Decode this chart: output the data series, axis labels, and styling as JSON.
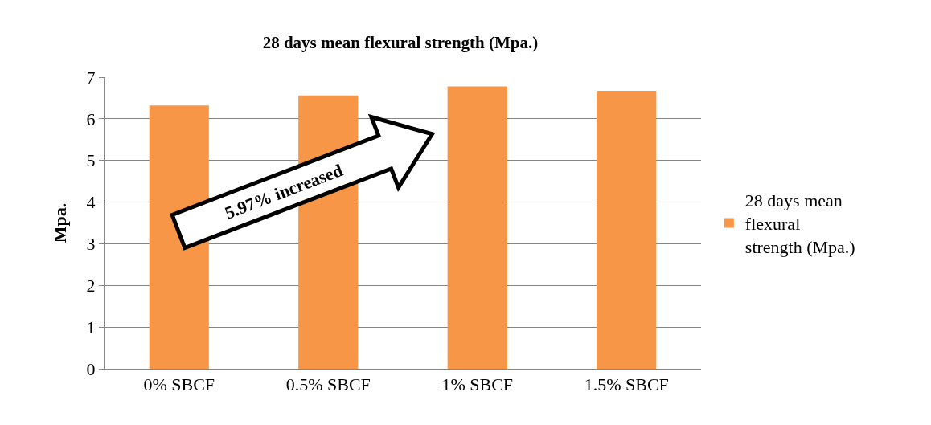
{
  "chart_data": {
    "type": "bar",
    "title": "28 days mean flexural strength (Mpa.)",
    "ylabel": "Mpa.",
    "categories": [
      "0% SBCF",
      "0.5% SBCF",
      "1% SBCF",
      "1.5% SBCF"
    ],
    "series": [
      {
        "name": "28 days mean flexural strength (Mpa.)",
        "color": "#f79646",
        "values": [
          6.32,
          6.56,
          6.78,
          6.67
        ]
      }
    ],
    "ylim": [
      0,
      7
    ],
    "yticks": [
      0,
      1,
      2,
      3,
      4,
      5,
      6,
      7
    ],
    "grid": "y",
    "legend": "right",
    "annotations": [
      "5.97% increased"
    ]
  }
}
